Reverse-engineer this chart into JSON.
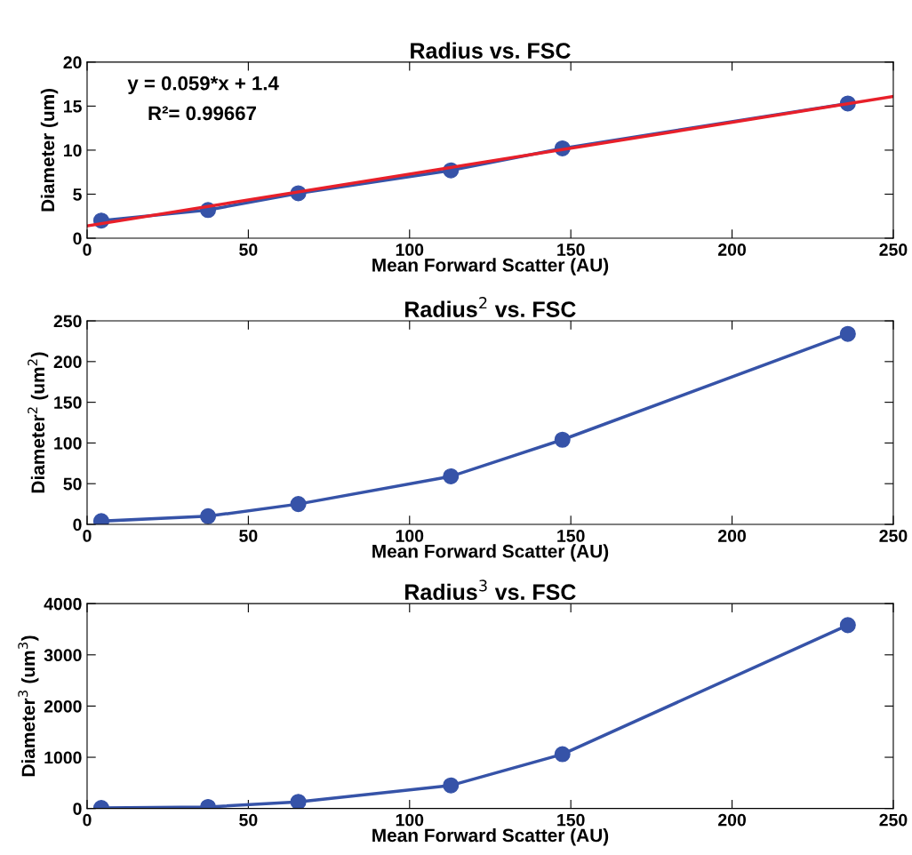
{
  "chart_data": [
    {
      "type": "line",
      "title": "Radius vs. FSC",
      "xlabel": "Mean Forward Scatter (AU)",
      "ylabel": "Diameter (um)",
      "xlim": [
        0,
        250
      ],
      "xticks": [
        0,
        50,
        100,
        150,
        200,
        250
      ],
      "ylim": [
        0,
        20
      ],
      "yticks": [
        0,
        5,
        10,
        15,
        20
      ],
      "grid": false,
      "marker": "circle",
      "line_style": "solid",
      "annotations": [
        "y = 0.059*x + 1.4",
        "R²= 0.99667"
      ],
      "x": [
        4.4,
        37.5,
        65.5,
        112.8,
        147.4,
        235.9
      ],
      "series": [
        {
          "color": "#3653a8",
          "values": [
            2.0,
            3.2,
            5.1,
            7.7,
            10.2,
            15.3
          ]
        },
        {
          "type": "line",
          "color": "#e8202a",
          "marker": "none",
          "x": [
            0,
            250
          ],
          "values": [
            1.4,
            16.1
          ]
        }
      ]
    },
    {
      "type": "line",
      "title": "Radius$^{2}$ vs. FSC",
      "xlabel": "Mean Forward Scatter (AU)",
      "ylabel": "Diameter$^{2}$ (um$^{2}$)",
      "xlim": [
        0,
        250
      ],
      "xticks": [
        0,
        50,
        100,
        150,
        200,
        250
      ],
      "ylim": [
        0,
        250
      ],
      "yticks": [
        0,
        50,
        100,
        150,
        200,
        250
      ],
      "grid": false,
      "marker": "circle",
      "line_style": "solid",
      "x": [
        4.4,
        37.5,
        65.5,
        112.8,
        147.4,
        235.9
      ],
      "series": [
        {
          "color": "#3653a8",
          "values": [
            4,
            10,
            25,
            59,
            104,
            234
          ]
        }
      ]
    },
    {
      "type": "line",
      "title": "Radius$^{3}$ vs. FSC",
      "xlabel": "Mean Forward Scatter (AU)",
      "ylabel": "Diameter$^{3}$ (um$^{3}$)",
      "xlim": [
        0,
        250
      ],
      "xticks": [
        0,
        50,
        100,
        150,
        200,
        250
      ],
      "ylim": [
        0,
        4000
      ],
      "yticks": [
        0,
        1000,
        2000,
        3000,
        4000
      ],
      "grid": false,
      "marker": "circle",
      "line_style": "solid",
      "x": [
        4.4,
        37.5,
        65.5,
        112.8,
        147.4,
        235.9
      ],
      "series": [
        {
          "color": "#3653a8",
          "values": [
            10,
            30,
            130,
            450,
            1060,
            3580
          ]
        }
      ]
    }
  ]
}
